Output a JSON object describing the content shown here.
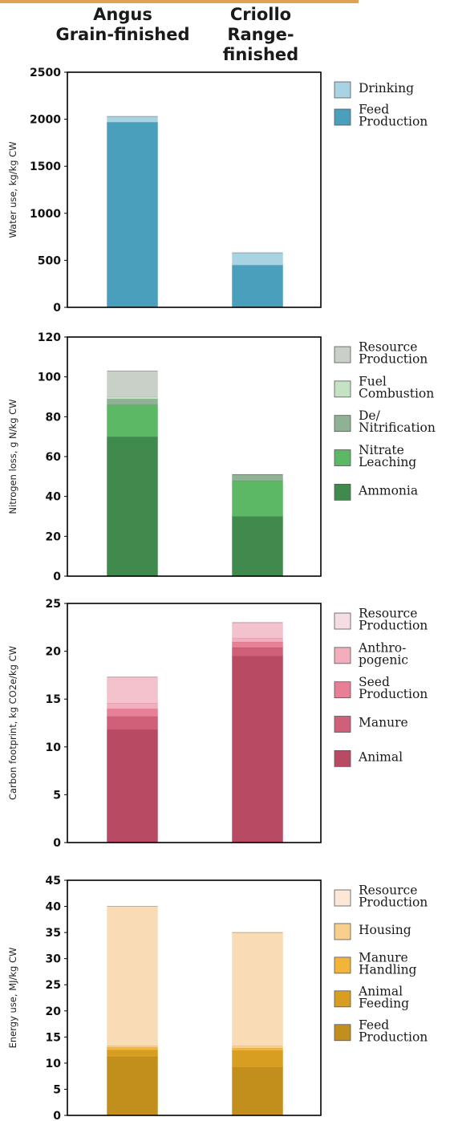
{
  "header": {
    "col1_line1": "Angus",
    "col1_line2": "Grain-finished",
    "col2_line1": "Criollo",
    "col2_line2": "Range-finished"
  },
  "chart_data": [
    {
      "type": "bar",
      "stacked": true,
      "categories": [
        "Angus Grain-finished",
        "Criollo Range-finished"
      ],
      "ylabel": "Water use, kg/kg CW",
      "ylim": [
        0,
        2500
      ],
      "yticks": [
        0,
        500,
        1000,
        1500,
        2000,
        2500
      ],
      "legend_position": "right",
      "series": [
        {
          "name": "Feed Production",
          "color": "#4a9fbd",
          "values": [
            1970,
            450
          ]
        },
        {
          "name": "Drinking",
          "color": "#a8d3e2",
          "values": [
            60,
            130
          ]
        }
      ],
      "legend": [
        {
          "label": [
            "Drinking"
          ],
          "color": "#a8d3e2"
        },
        {
          "label": [
            "Feed",
            "Production"
          ],
          "color": "#4a9fbd"
        }
      ]
    },
    {
      "type": "bar",
      "stacked": true,
      "categories": [
        "Angus Grain-finished",
        "Criollo Range-finished"
      ],
      "ylabel": "Nitrogen loss, g N/kg CW",
      "ylim": [
        0,
        120
      ],
      "yticks": [
        0,
        20,
        40,
        60,
        80,
        100,
        120
      ],
      "legend_position": "right",
      "series": [
        {
          "name": "Ammonia",
          "color": "#3f8a4c",
          "values": [
            70,
            30
          ]
        },
        {
          "name": "Nitrate Leaching",
          "color": "#5db866",
          "values": [
            16,
            18
          ]
        },
        {
          "name": "De/Nitrification",
          "color": "#8fb294",
          "values": [
            3,
            3
          ]
        },
        {
          "name": "Fuel Combustion",
          "color": "#c4e3c2",
          "values": [
            1,
            0
          ]
        },
        {
          "name": "Resource Production",
          "color": "#c9d0c7",
          "values": [
            13,
            0
          ]
        }
      ],
      "legend": [
        {
          "label": [
            "Resource",
            "Production"
          ],
          "color": "#c9d0c7"
        },
        {
          "label": [
            "Fuel",
            "Combustion"
          ],
          "color": "#c4e3c2"
        },
        {
          "label": [
            "De/",
            "Nitrification"
          ],
          "color": "#8fb294"
        },
        {
          "label": [
            "Nitrate",
            "Leaching"
          ],
          "color": "#5db866"
        },
        {
          "label": [
            "Ammonia"
          ],
          "color": "#3f8a4c"
        }
      ]
    },
    {
      "type": "bar",
      "stacked": true,
      "categories": [
        "Angus Grain-finished",
        "Criollo Range-finished"
      ],
      "ylabel": "Carbon footprint, kg CO2e/kg CW",
      "ylim": [
        0,
        25
      ],
      "yticks": [
        0,
        5,
        10,
        15,
        20,
        25
      ],
      "legend_position": "right",
      "series": [
        {
          "name": "Animal",
          "color": "#b84a63",
          "values": [
            11.8,
            19.5
          ]
        },
        {
          "name": "Manure",
          "color": "#d0607a",
          "values": [
            1.4,
            0.9
          ]
        },
        {
          "name": "Seed Production",
          "color": "#e77f97",
          "values": [
            0.8,
            0.6
          ]
        },
        {
          "name": "Anthropogenic",
          "color": "#f2aebc",
          "values": [
            0.6,
            0.4
          ]
        },
        {
          "name": "Resource Production",
          "color": "#f4c2cd",
          "values": [
            2.7,
            1.6
          ]
        }
      ],
      "legend": [
        {
          "label": [
            "Resource",
            "Production"
          ],
          "color": "#f4dde3"
        },
        {
          "label": [
            "Anthro-",
            "pogenic"
          ],
          "color": "#f2aebc"
        },
        {
          "label": [
            "Seed",
            "Production"
          ],
          "color": "#e77f97"
        },
        {
          "label": [
            "Manure"
          ],
          "color": "#d0607a"
        },
        {
          "label": [
            "Animal"
          ],
          "color": "#b84a63"
        }
      ]
    },
    {
      "type": "bar",
      "stacked": true,
      "categories": [
        "Angus Grain-finished",
        "Criollo Range-finished"
      ],
      "ylabel": "Energy use, MJ/kg CW",
      "ylim": [
        0,
        45
      ],
      "yticks": [
        0,
        5,
        10,
        15,
        20,
        25,
        30,
        35,
        40,
        45
      ],
      "legend_position": "right",
      "series": [
        {
          "name": "Feed Production",
          "color": "#c38f1c",
          "values": [
            11.2,
            9.2
          ]
        },
        {
          "name": "Animal Feeding",
          "color": "#d89e22",
          "values": [
            1.3,
            3.2
          ]
        },
        {
          "name": "Manure Handling",
          "color": "#f3b43a",
          "values": [
            0.5,
            0.5
          ]
        },
        {
          "name": "Housing",
          "color": "#f9cf8d",
          "values": [
            0.4,
            0.4
          ]
        },
        {
          "name": "Resource Production",
          "color": "#f9dcb6",
          "values": [
            26.6,
            21.7
          ]
        }
      ],
      "legend": [
        {
          "label": [
            "Resource",
            "Production"
          ],
          "color": "#fde8d7"
        },
        {
          "label": [
            "Housing"
          ],
          "color": "#f9cf8d"
        },
        {
          "label": [
            "Manure",
            "Handling"
          ],
          "color": "#f3b43a"
        },
        {
          "label": [
            "Animal",
            "Feeding"
          ],
          "color": "#d89e22"
        },
        {
          "label": [
            "Feed",
            "Production"
          ],
          "color": "#c38f1c"
        }
      ]
    }
  ]
}
